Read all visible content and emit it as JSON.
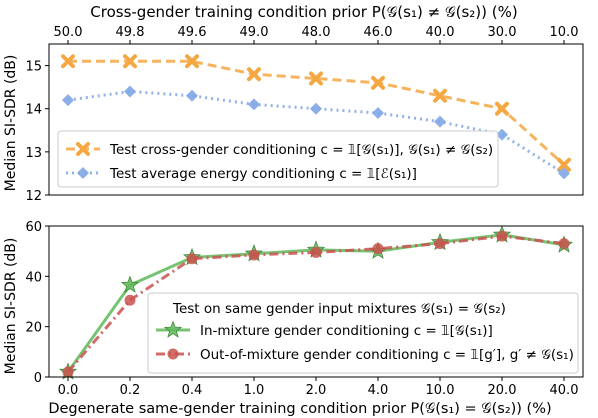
{
  "chart_data": [
    {
      "type": "line",
      "top_label": "Cross-gender training condition prior P(𝒢(s₁) ≠ 𝒢(s₂)) (%)",
      "categories": [
        "50.0",
        "49.8",
        "49.6",
        "49.0",
        "48.0",
        "46.0",
        "40.0",
        "30.0",
        "10.0"
      ],
      "ylabel": "Median SI-SDR (dB)",
      "ylim": [
        12,
        15.5
      ],
      "yticks": [
        "12",
        "13",
        "14",
        "15"
      ],
      "grid": false,
      "legend_position": "lower-left",
      "series": [
        {
          "name": "Test cross-gender conditioning c = 𝟙[𝒢(s₁)], 𝒢(s₁) ≠ 𝒢(s₂)",
          "color": "#f5a742",
          "marker": "x",
          "linestyle": "dashed",
          "values": [
            15.1,
            15.1,
            15.1,
            14.8,
            14.7,
            14.6,
            14.3,
            14.0,
            12.7
          ]
        },
        {
          "name": "Test average energy conditioning c = 𝟙[ℰ(s₁)]",
          "color": "#7fa6e6",
          "marker": "diamond",
          "linestyle": "dotted",
          "values": [
            14.2,
            14.4,
            14.3,
            14.1,
            14.0,
            13.9,
            13.7,
            13.4,
            12.5
          ]
        }
      ]
    },
    {
      "type": "line",
      "xlabel": "Degenerate same-gender training condition prior P(𝒢(s₁) = 𝒢(s₂)) (%)",
      "categories": [
        "0.0",
        "0.2",
        "0.4",
        "1.0",
        "2.0",
        "4.0",
        "10.0",
        "20.0",
        "40.0"
      ],
      "ylabel": "Median SI-SDR (dB)",
      "ylim": [
        0,
        60
      ],
      "yticks": [
        "0",
        "20",
        "40",
        "60"
      ],
      "grid": false,
      "legend_position": "lower-right",
      "legend_title": "Test on same gender input mixtures 𝒢(s₁) = 𝒢(s₂)",
      "series": [
        {
          "name": "In-mixture gender conditioning c = 𝟙[𝒢(s₁)]",
          "color": "#5fb85a",
          "marker": "star",
          "linestyle": "solid",
          "values": [
            2.0,
            36.5,
            47.5,
            49.0,
            50.5,
            50.0,
            53.5,
            56.5,
            52.5
          ]
        },
        {
          "name": "Out-of-mixture gender conditioning c = 𝟙[g′], g′ ≠ 𝒢(s₁)",
          "color": "#c9524f",
          "marker": "circle",
          "linestyle": "dashdot",
          "values": [
            2.0,
            30.5,
            47.0,
            48.5,
            49.5,
            51.0,
            53.0,
            56.0,
            53.0
          ]
        }
      ]
    }
  ]
}
